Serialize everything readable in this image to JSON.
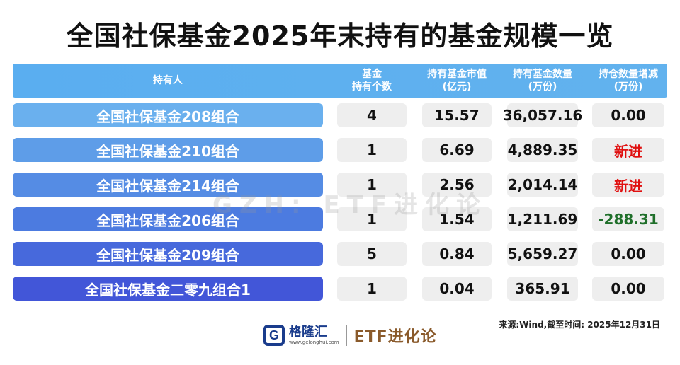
{
  "title": "全国社保基金2025年末持有的基金规模一览",
  "columns": [
    {
      "line1": "持有人",
      "line2": ""
    },
    {
      "line1": "基金",
      "line2": "持有个数"
    },
    {
      "line1": "持有基金市值",
      "line2": "(亿元)"
    },
    {
      "line1": "持有基金数量",
      "line2": "(万份)"
    },
    {
      "line1": "持仓数量增减",
      "line2": "(万份)"
    }
  ],
  "rows": [
    {
      "holder": "全国社保基金208组合",
      "count": "4",
      "market_value": "15.57",
      "quantity": "36,057.16",
      "change": "0.00",
      "change_style": "normal",
      "color": "#6ab0ee"
    },
    {
      "holder": "全国社保基金210组合",
      "count": "1",
      "market_value": "6.69",
      "quantity": "4,889.35",
      "change": "新进",
      "change_style": "red",
      "color": "#5e9de8"
    },
    {
      "holder": "全国社保基金214组合",
      "count": "1",
      "market_value": "2.56",
      "quantity": "2,014.14",
      "change": "新进",
      "change_style": "red",
      "color": "#558ce4"
    },
    {
      "holder": "全国社保基金206组合",
      "count": "1",
      "market_value": "1.54",
      "quantity": "1,211.69",
      "change": "-288.31",
      "change_style": "green",
      "color": "#4c7be0"
    },
    {
      "holder": "全国社保基金209组合",
      "count": "5",
      "market_value": "0.84",
      "quantity": "5,659.27",
      "change": "0.00",
      "change_style": "normal",
      "color": "#4769dc"
    },
    {
      "holder": "全国社保基金二零九组合1",
      "count": "1",
      "market_value": "0.04",
      "quantity": "365.91",
      "change": "0.00",
      "change_style": "normal",
      "color": "#4256d8"
    }
  ],
  "watermark": "GZH: ETF进化论",
  "source": "来源:Wind,截至时间: 2025年12月31日",
  "footer": {
    "logo_letter": "G",
    "logo_name": "格隆汇",
    "logo_url": "www.gelonghui.com",
    "brand": "ETF进化论"
  }
}
